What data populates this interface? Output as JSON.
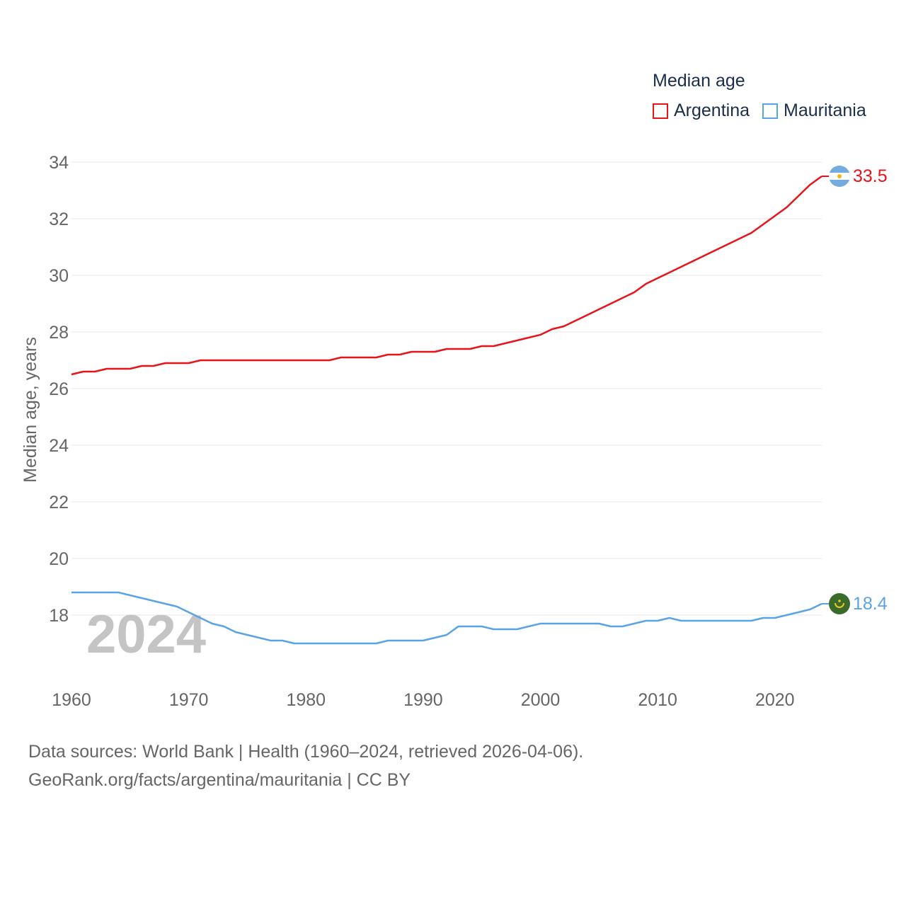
{
  "legend": {
    "title": "Median age"
  },
  "chart_data": {
    "type": "line",
    "title": "Median age",
    "ylabel": "Median age, years",
    "xlabel": "",
    "xlim": [
      1960,
      2024
    ],
    "ylim": [
      16,
      34
    ],
    "yticks": [
      18,
      20,
      22,
      24,
      26,
      28,
      30,
      32,
      34
    ],
    "xticks": [
      1960,
      1970,
      1980,
      1990,
      2000,
      2010,
      2020
    ],
    "year_watermark": "2024",
    "grid": true,
    "series": [
      {
        "name": "Argentina",
        "color": "#e8141a",
        "end_label": "33.5",
        "icon": "argentina-flag-icon",
        "x": [
          1960,
          1961,
          1962,
          1963,
          1964,
          1965,
          1966,
          1967,
          1968,
          1969,
          1970,
          1971,
          1972,
          1973,
          1974,
          1975,
          1976,
          1977,
          1978,
          1979,
          1980,
          1981,
          1982,
          1983,
          1984,
          1985,
          1986,
          1987,
          1988,
          1989,
          1990,
          1991,
          1992,
          1993,
          1994,
          1995,
          1996,
          1997,
          1998,
          1999,
          2000,
          2001,
          2002,
          2003,
          2004,
          2005,
          2006,
          2007,
          2008,
          2009,
          2010,
          2011,
          2012,
          2013,
          2014,
          2015,
          2016,
          2017,
          2018,
          2019,
          2020,
          2021,
          2022,
          2023,
          2024
        ],
        "values": [
          26.5,
          26.6,
          26.6,
          26.7,
          26.7,
          26.7,
          26.8,
          26.8,
          26.9,
          26.9,
          26.9,
          27.0,
          27.0,
          27.0,
          27.0,
          27.0,
          27.0,
          27.0,
          27.0,
          27.0,
          27.0,
          27.0,
          27.0,
          27.1,
          27.1,
          27.1,
          27.1,
          27.2,
          27.2,
          27.3,
          27.3,
          27.3,
          27.4,
          27.4,
          27.4,
          27.5,
          27.5,
          27.6,
          27.7,
          27.8,
          27.9,
          28.1,
          28.2,
          28.4,
          28.6,
          28.8,
          29.0,
          29.2,
          29.4,
          29.7,
          29.9,
          30.1,
          30.3,
          30.5,
          30.7,
          30.9,
          31.1,
          31.3,
          31.5,
          31.8,
          32.1,
          32.4,
          32.8,
          33.2,
          33.5
        ]
      },
      {
        "name": "Mauritania",
        "color": "#5aa3e6",
        "end_label": "18.4",
        "icon": "mauritania-flag-icon",
        "x": [
          1960,
          1961,
          1962,
          1963,
          1964,
          1965,
          1966,
          1967,
          1968,
          1969,
          1970,
          1971,
          1972,
          1973,
          1974,
          1975,
          1976,
          1977,
          1978,
          1979,
          1980,
          1981,
          1982,
          1983,
          1984,
          1985,
          1986,
          1987,
          1988,
          1989,
          1990,
          1991,
          1992,
          1993,
          1994,
          1995,
          1996,
          1997,
          1998,
          1999,
          2000,
          2001,
          2002,
          2003,
          2004,
          2005,
          2006,
          2007,
          2008,
          2009,
          2010,
          2011,
          2012,
          2013,
          2014,
          2015,
          2016,
          2017,
          2018,
          2019,
          2020,
          2021,
          2022,
          2023,
          2024
        ],
        "values": [
          18.8,
          18.8,
          18.8,
          18.8,
          18.8,
          18.7,
          18.6,
          18.5,
          18.4,
          18.3,
          18.1,
          17.9,
          17.7,
          17.6,
          17.4,
          17.3,
          17.2,
          17.1,
          17.1,
          17.0,
          17.0,
          17.0,
          17.0,
          17.0,
          17.0,
          17.0,
          17.0,
          17.1,
          17.1,
          17.1,
          17.1,
          17.2,
          17.3,
          17.6,
          17.6,
          17.6,
          17.5,
          17.5,
          17.5,
          17.6,
          17.7,
          17.7,
          17.7,
          17.7,
          17.7,
          17.7,
          17.6,
          17.6,
          17.7,
          17.8,
          17.8,
          17.9,
          17.8,
          17.8,
          17.8,
          17.8,
          17.8,
          17.8,
          17.8,
          17.9,
          17.9,
          18.0,
          18.1,
          18.2,
          18.4
        ]
      }
    ]
  },
  "source": {
    "line1": "Data sources: World Bank | Health (1960–2024, retrieved 2026-04-06).",
    "line2": "GeoRank.org/facts/argentina/mauritania | CC BY"
  }
}
